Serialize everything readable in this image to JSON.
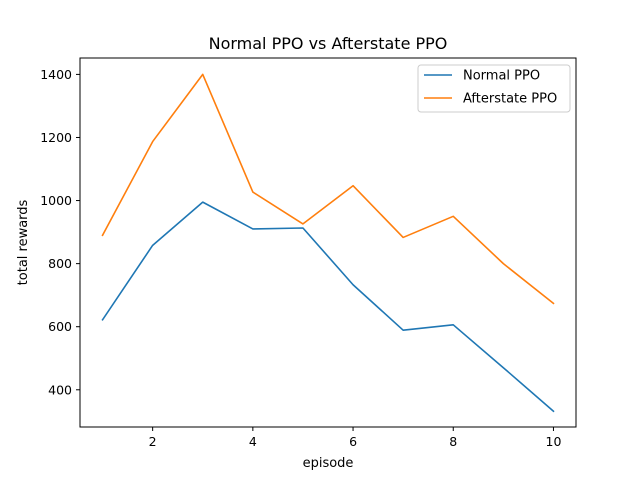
{
  "chart_data": {
    "type": "line",
    "title": "Normal PPO vs Afterstate PPO",
    "xlabel": "episode",
    "ylabel": "total rewards",
    "x": [
      1,
      2,
      3,
      4,
      5,
      6,
      7,
      8,
      9,
      10
    ],
    "xlim": [
      0.55,
      10.45
    ],
    "ylim": [
      282,
      1452
    ],
    "xticks": [
      2,
      4,
      6,
      8,
      10
    ],
    "yticks": [
      400,
      600,
      800,
      1000,
      1200,
      1400
    ],
    "xtick_labels": [
      "2",
      "4",
      "6",
      "8",
      "10"
    ],
    "ytick_labels": [
      "400",
      "600",
      "800",
      "1000",
      "1200",
      "1400"
    ],
    "grid": false,
    "legend_position": "top-right",
    "series": [
      {
        "name": "Normal PPO",
        "color": "#1f77b4",
        "values": [
          622,
          858,
          995,
          910,
          913,
          733,
          589,
          606,
          470,
          332
        ]
      },
      {
        "name": "Afterstate PPO",
        "color": "#ff7f0e",
        "values": [
          890,
          1187,
          1400,
          1027,
          926,
          1047,
          883,
          950,
          800,
          674
        ]
      }
    ]
  }
}
